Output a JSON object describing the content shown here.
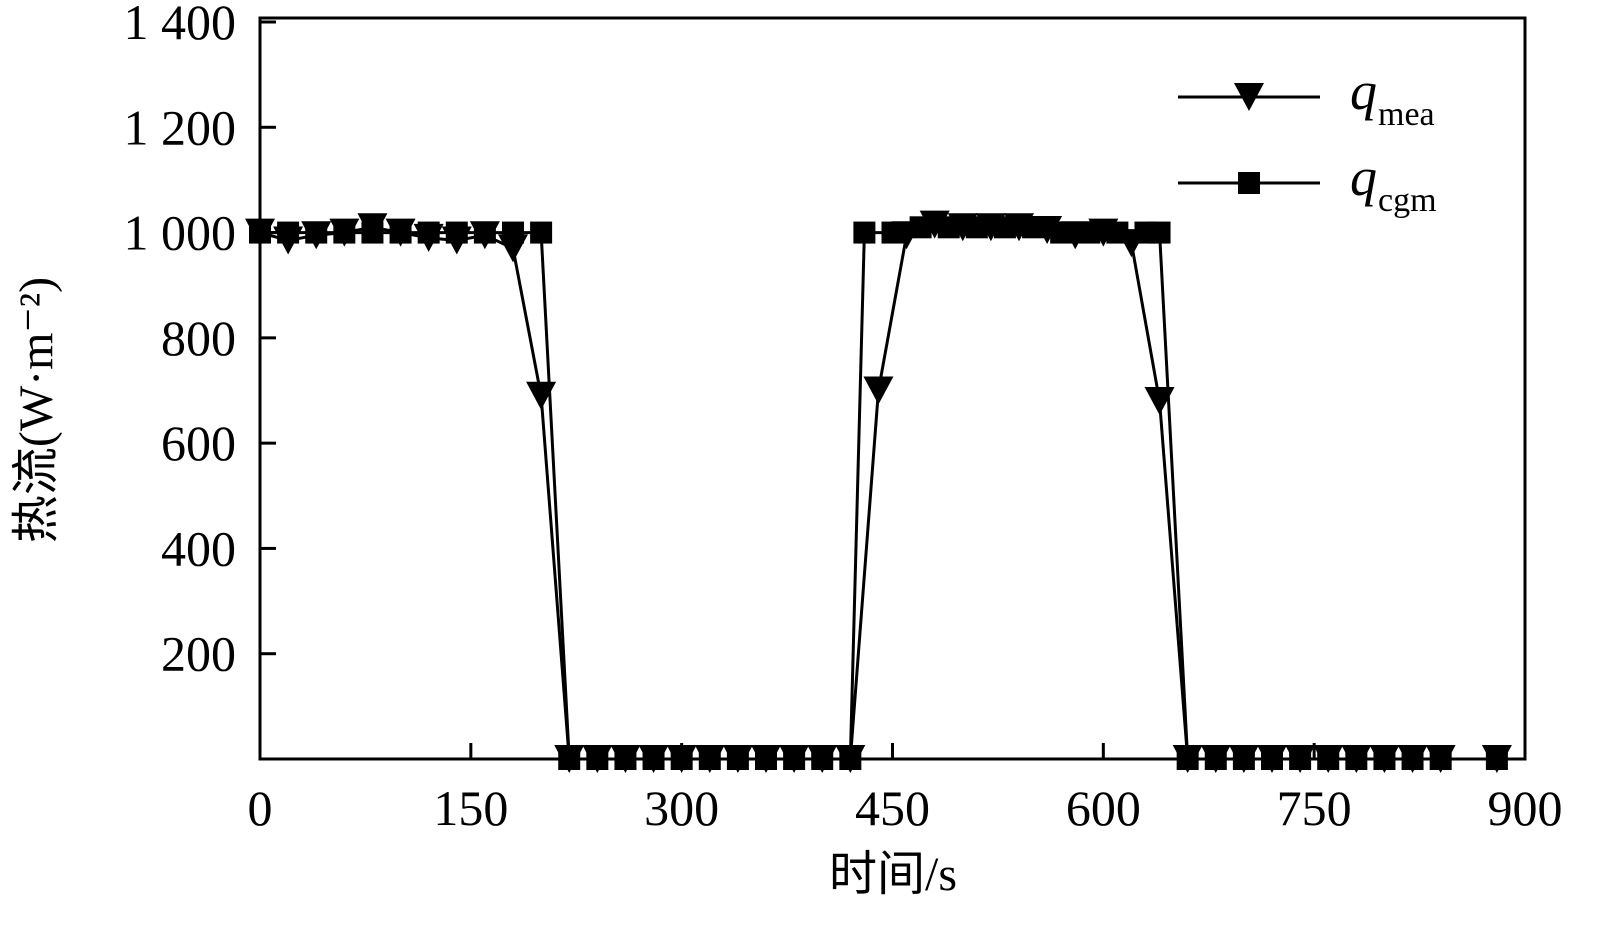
{
  "chart_data": {
    "type": "line",
    "xlabel": "时间/s",
    "ylabel": "热流(W·m⁻²)",
    "xlim": [
      0,
      900
    ],
    "ylim": [
      0,
      1400
    ],
    "xticks": [
      0,
      150,
      300,
      450,
      600,
      750,
      900
    ],
    "yticks": [
      200,
      400,
      600,
      800,
      {
        "value": 1000,
        "label": "1 000"
      },
      {
        "value": 1200,
        "label": "1 200"
      },
      {
        "value": 1400,
        "label": "1 400"
      }
    ],
    "legend": "upper right",
    "series": [
      {
        "name": "q",
        "subscript": "mea",
        "marker": "triangle-down",
        "color": "#000000",
        "x": [
          0,
          20,
          40,
          60,
          80,
          100,
          120,
          140,
          160,
          180,
          200,
          220,
          240,
          260,
          280,
          300,
          320,
          340,
          360,
          380,
          400,
          420,
          440,
          460,
          480,
          500,
          520,
          540,
          560,
          580,
          600,
          620,
          640,
          660,
          680,
          700,
          720,
          740,
          760,
          780,
          800,
          820,
          840,
          880
        ],
        "values": [
          1000,
          985,
          995,
          1000,
          1010,
          1000,
          990,
          985,
          995,
          970,
          690,
          0,
          0,
          0,
          0,
          0,
          0,
          0,
          0,
          0,
          0,
          0,
          700,
          995,
          1015,
          1010,
          1010,
          1010,
          1005,
          995,
          1000,
          980,
          680,
          0,
          0,
          0,
          0,
          0,
          0,
          0,
          0,
          0,
          0,
          0
        ]
      },
      {
        "name": "q",
        "subscript": "cgm",
        "marker": "square",
        "color": "#000000",
        "x": [
          0,
          20,
          40,
          60,
          80,
          100,
          120,
          140,
          160,
          180,
          200,
          220,
          240,
          260,
          280,
          300,
          320,
          340,
          360,
          380,
          400,
          420,
          430,
          450,
          470,
          490,
          510,
          530,
          550,
          570,
          590,
          610,
          630,
          640,
          660,
          680,
          700,
          720,
          740,
          760,
          780,
          800,
          820,
          840,
          880
        ],
        "values": [
          1000,
          1000,
          1000,
          1000,
          1000,
          1000,
          1000,
          1000,
          1000,
          1000,
          1000,
          0,
          0,
          0,
          0,
          0,
          0,
          0,
          0,
          0,
          0,
          0,
          1000,
          1000,
          1010,
          1010,
          1010,
          1010,
          1010,
          1000,
          1000,
          1000,
          1000,
          1000,
          0,
          0,
          0,
          0,
          0,
          0,
          0,
          0,
          0,
          0,
          0
        ]
      }
    ]
  }
}
